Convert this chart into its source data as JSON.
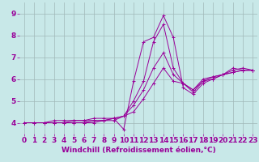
{
  "xlabel": "Windchill (Refroidissement éolien,°C)",
  "background_color": "#c8e8e8",
  "line_color": "#990099",
  "grid_color": "#a0b8b8",
  "xlim": [
    -0.5,
    23.5
  ],
  "ylim": [
    3.5,
    9.5
  ],
  "xticks": [
    0,
    1,
    2,
    3,
    4,
    5,
    6,
    7,
    8,
    9,
    10,
    11,
    12,
    13,
    14,
    15,
    16,
    17,
    18,
    19,
    20,
    21,
    22,
    23
  ],
  "yticks": [
    4,
    5,
    6,
    7,
    8,
    9
  ],
  "series": [
    [
      4.0,
      4.0,
      4.0,
      4.1,
      4.1,
      4.1,
      4.1,
      4.2,
      4.2,
      4.2,
      3.7,
      5.9,
      7.7,
      7.9,
      8.9,
      7.9,
      5.6,
      5.3,
      5.8,
      6.0,
      6.2,
      6.5,
      6.4,
      6.4
    ],
    [
      4.0,
      4.0,
      4.0,
      4.0,
      4.0,
      4.1,
      4.1,
      4.1,
      4.1,
      4.2,
      4.3,
      5.0,
      5.9,
      7.7,
      8.5,
      6.5,
      5.8,
      5.4,
      5.9,
      6.1,
      6.2,
      6.4,
      6.5,
      6.4
    ],
    [
      4.0,
      4.0,
      4.0,
      4.0,
      4.0,
      4.0,
      4.0,
      4.1,
      4.1,
      4.2,
      4.3,
      4.8,
      5.5,
      6.5,
      7.2,
      6.2,
      5.8,
      5.5,
      6.0,
      6.1,
      6.2,
      6.3,
      6.4,
      6.4
    ],
    [
      4.0,
      4.0,
      4.0,
      4.0,
      4.0,
      4.0,
      4.0,
      4.0,
      4.1,
      4.1,
      4.3,
      4.5,
      5.1,
      5.8,
      6.5,
      5.9,
      5.8,
      5.5,
      5.9,
      6.0,
      6.2,
      6.3,
      6.4,
      6.4
    ]
  ],
  "tick_fontsize": 6.5,
  "xlabel_fontsize": 6.5
}
